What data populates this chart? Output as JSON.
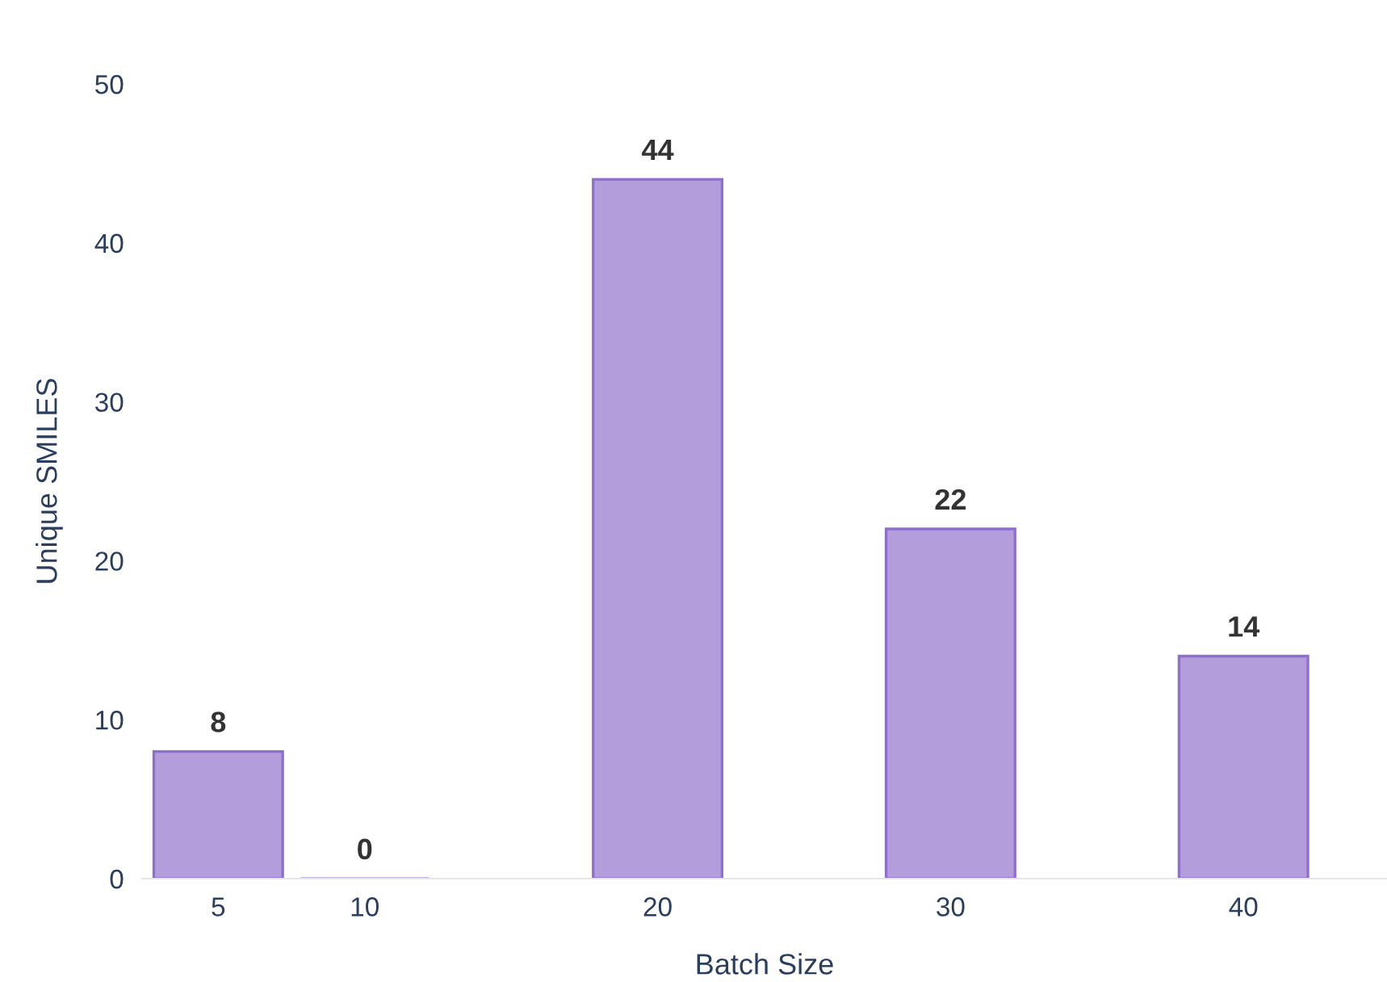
{
  "chart_data": {
    "type": "bar",
    "xlabel": "Batch Size",
    "ylabel": "Unique SMILES",
    "x": [
      5,
      10,
      20,
      30,
      40
    ],
    "values": [
      8,
      0,
      44,
      22,
      14
    ],
    "color": "#b39ddb",
    "xlim": [
      2.4,
      44.9
    ],
    "xticks": [
      5,
      10,
      20,
      30,
      40
    ],
    "ylim": [
      0,
      50
    ],
    "yticks": [
      0,
      10,
      20,
      30,
      40,
      50
    ],
    "data_labels": true,
    "grid": false,
    "legend": false
  }
}
